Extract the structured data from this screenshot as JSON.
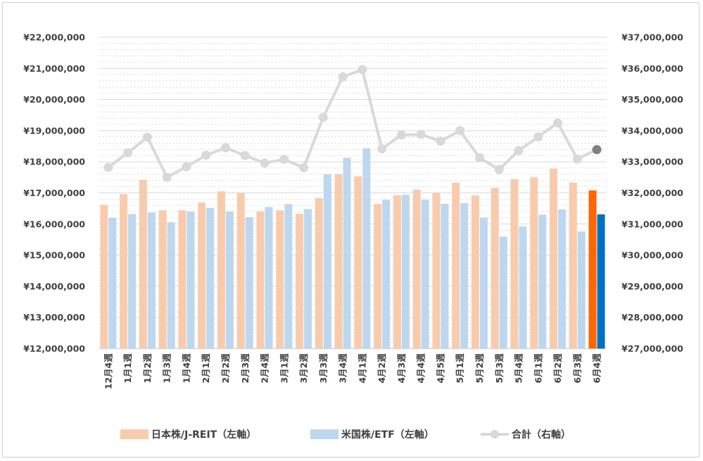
{
  "chart_data": {
    "type": "bar",
    "categories": [
      "12月4週",
      "1月1週",
      "1月2週",
      "1月3週",
      "1月4週",
      "2月1週",
      "2月2週",
      "2月3週",
      "2月4週",
      "3月1週",
      "3月2週",
      "3月3週",
      "3月4週",
      "4月1週",
      "4月2週",
      "4月3週",
      "4月4週",
      "4月5週",
      "5月1週",
      "5月2週",
      "5月3週",
      "5月4週",
      "6月1週",
      "6月2週",
      "6月3週",
      "6月4週"
    ],
    "series": [
      {
        "name": "日本株/J-REIT（左軸）",
        "type": "bar",
        "axis": "left",
        "values": [
          16620000,
          16960000,
          17420000,
          16440000,
          16440000,
          16690000,
          17050000,
          16990000,
          16410000,
          16440000,
          16330000,
          16830000,
          17600000,
          17530000,
          16640000,
          16920000,
          17100000,
          17010000,
          17330000,
          16920000,
          17160000,
          17440000,
          17500000,
          17780000,
          17330000,
          17080000
        ]
      },
      {
        "name": "米国株/ETF（左軸）",
        "type": "bar",
        "axis": "left",
        "values": [
          16200000,
          16320000,
          16370000,
          16060000,
          16400000,
          16520000,
          16400000,
          16220000,
          16550000,
          16640000,
          16480000,
          17600000,
          18130000,
          18430000,
          16780000,
          16940000,
          16780000,
          16650000,
          16670000,
          16210000,
          15590000,
          15920000,
          16300000,
          16470000,
          15760000,
          16310000
        ]
      },
      {
        "name": "合計（右軸）",
        "type": "line",
        "axis": "right",
        "values": [
          32820000,
          33290000,
          33790000,
          32500000,
          32840000,
          33210000,
          33450000,
          33200000,
          32960000,
          33080000,
          32810000,
          34430000,
          35730000,
          35960000,
          33420000,
          33860000,
          33880000,
          33660000,
          34000000,
          33130000,
          32750000,
          33360000,
          33800000,
          34250000,
          33090000,
          33390000
        ]
      }
    ],
    "y_left": {
      "min": 12000000,
      "max": 22000000,
      "step": 1000000,
      "tick_labels": [
        "¥12,000,000",
        "¥13,000,000",
        "¥14,000,000",
        "¥15,000,000",
        "¥16,000,000",
        "¥17,000,000",
        "¥18,000,000",
        "¥19,000,000",
        "¥20,000,000",
        "¥21,000,000",
        "¥22,000,000"
      ]
    },
    "y_right": {
      "min": 27000000,
      "max": 37000000,
      "step": 1000000,
      "tick_labels": [
        "¥27,000,000",
        "¥28,000,000",
        "¥29,000,000",
        "¥30,000,000",
        "¥31,000,000",
        "¥32,000,000",
        "¥33,000,000",
        "¥34,000,000",
        "¥35,000,000",
        "¥36,000,000",
        "¥37,000,000"
      ]
    },
    "grid": true,
    "legend_position": "bottom",
    "colors": {
      "jp": "#f8cbad",
      "us": "#bdd7ee",
      "total": "#d9d9d9",
      "jp_latest": "#ff6600",
      "us_latest": "#0070c0",
      "total_latest": "#808080"
    }
  },
  "legend": {
    "jp_label": "日本株/J-REIT（左軸）",
    "us_label": "米国株/ETF（左軸）",
    "total_label": "合計（右軸）"
  }
}
